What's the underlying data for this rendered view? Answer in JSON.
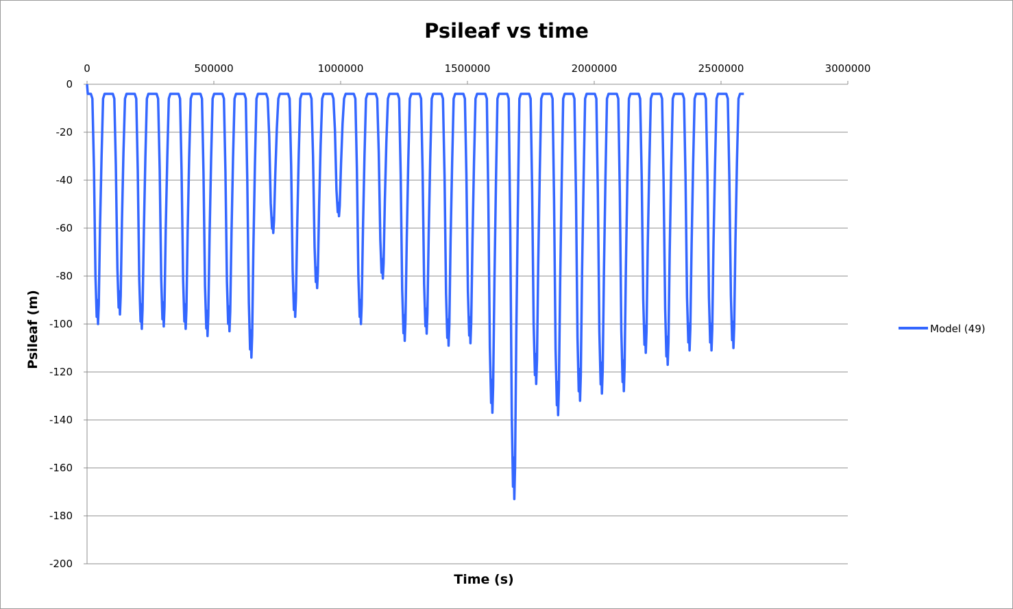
{
  "chart_data": {
    "type": "line",
    "title": "Psileaf vs time",
    "xlabel": "Time (s)",
    "ylabel": "Psileaf (m)",
    "xlim": [
      0,
      3000000
    ],
    "ylim": [
      -200,
      0
    ],
    "x_ticks": [
      0,
      500000,
      1000000,
      1500000,
      2000000,
      2500000,
      3000000
    ],
    "x_tick_labels": [
      "0",
      "500000",
      "1000000",
      "1500000",
      "2000000",
      "2500000",
      "3000000"
    ],
    "y_ticks": [
      0,
      -20,
      -40,
      -60,
      -80,
      -100,
      -120,
      -140,
      -160,
      -180,
      -200
    ],
    "y_tick_labels": [
      "0",
      "-20",
      "-40",
      "-60",
      "-80",
      "-100",
      "-120",
      "-140",
      "-160",
      "-180",
      "-200"
    ],
    "x_axis_position": "top",
    "grid": "horizontal",
    "legend_position": "right",
    "colors": {
      "series": "#3366ff",
      "grid": "#8c8c8c",
      "frame": "#9a9a9a"
    },
    "series": [
      {
        "name": "Model (49)",
        "x_start": 0,
        "x_end": 2590000,
        "baseline": -4,
        "daily_minima": [
          {
            "t": 43200,
            "min": -100
          },
          {
            "t": 129600,
            "min": -96
          },
          {
            "t": 216000,
            "min": -102
          },
          {
            "t": 302400,
            "min": -101
          },
          {
            "t": 388800,
            "min": -102
          },
          {
            "t": 475200,
            "min": -105
          },
          {
            "t": 561600,
            "min": -103
          },
          {
            "t": 648000,
            "min": -114
          },
          {
            "t": 734400,
            "min": -62
          },
          {
            "t": 820800,
            "min": -97
          },
          {
            "t": 907200,
            "min": -85
          },
          {
            "t": 993600,
            "min": -55
          },
          {
            "t": 1080000,
            "min": -100
          },
          {
            "t": 1166400,
            "min": -81
          },
          {
            "t": 1252800,
            "min": -107
          },
          {
            "t": 1339200,
            "min": -104
          },
          {
            "t": 1425600,
            "min": -109
          },
          {
            "t": 1512000,
            "min": -108
          },
          {
            "t": 1598400,
            "min": -137
          },
          {
            "t": 1684800,
            "min": -173
          },
          {
            "t": 1771200,
            "min": -125
          },
          {
            "t": 1857600,
            "min": -138
          },
          {
            "t": 1944000,
            "min": -132
          },
          {
            "t": 2030400,
            "min": -129
          },
          {
            "t": 2116800,
            "min": -128
          },
          {
            "t": 2203200,
            "min": -112
          },
          {
            "t": 2289600,
            "min": -117
          },
          {
            "t": 2376000,
            "min": -111
          },
          {
            "t": 2462400,
            "min": -111
          },
          {
            "t": 2548800,
            "min": -110
          }
        ]
      }
    ]
  }
}
